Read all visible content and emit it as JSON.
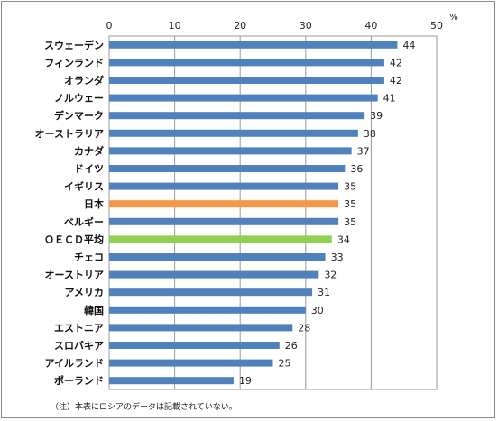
{
  "chart_data": {
    "type": "bar",
    "orientation": "horizontal",
    "unit": "%",
    "xlim": [
      0,
      50
    ],
    "xticks": [
      0,
      10,
      20,
      30,
      40,
      50
    ],
    "xaxis_position": "top",
    "grid": true,
    "categories": [
      "スウェーデン",
      "フィンランド",
      "オランダ",
      "ノルウェー",
      "デンマーク",
      "オーストラリア",
      "カナダ",
      "ドイツ",
      "イギリス",
      "日本",
      "ベルギー",
      "ＯＥＣＤ平均",
      "チェコ",
      "オーストリア",
      "アメリカ",
      "韓国",
      "エストニア",
      "スロバキア",
      "アイルランド",
      "ポーランド"
    ],
    "values": [
      44,
      42,
      42,
      41,
      39,
      38,
      37,
      36,
      35,
      35,
      35,
      34,
      33,
      32,
      31,
      30,
      28,
      26,
      25,
      19
    ],
    "bar_colors": {
      "default": "#4f81bd",
      "日本": "#f79646",
      "ＯＥＣＤ平均": "#92d050"
    },
    "note": "（注）本表にロシアのデータは記載されていない。"
  }
}
